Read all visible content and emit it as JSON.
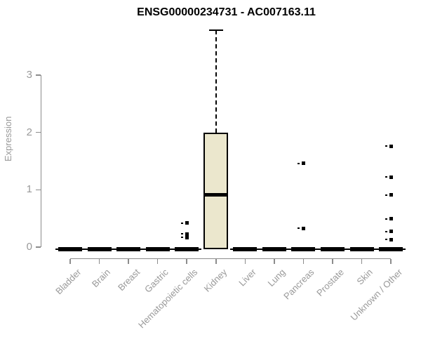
{
  "chart_data": {
    "type": "boxplot",
    "title": "ENSG00000234731 - AC007163.11",
    "ylabel": "Expression",
    "xlabel": "",
    "yticks": [
      0,
      1,
      2,
      3
    ],
    "ylim": [
      0,
      3.9
    ],
    "grid": false,
    "legend": null,
    "categories": [
      "Bladder",
      "Brain",
      "Breast",
      "Gastric",
      "Hematopoietic cells",
      "Kidney",
      "Liver",
      "Lung",
      "Pancreas",
      "Prostate",
      "Skin",
      "Unknown / Other"
    ],
    "boxes": [
      {
        "category": "Bladder",
        "min": 0,
        "q1": 0,
        "median": 0,
        "q3": 0,
        "max": 0,
        "outliers": []
      },
      {
        "category": "Brain",
        "min": 0,
        "q1": 0,
        "median": 0,
        "q3": 0,
        "max": 0,
        "outliers": []
      },
      {
        "category": "Breast",
        "min": 0,
        "q1": 0,
        "median": 0,
        "q3": 0,
        "max": 0,
        "outliers": []
      },
      {
        "category": "Gastric",
        "min": 0,
        "q1": 0,
        "median": 0,
        "q3": 0,
        "max": 0,
        "outliers": []
      },
      {
        "category": "Hematopoietic cells",
        "min": 0,
        "q1": 0,
        "median": 0,
        "q3": 0,
        "max": 0,
        "outliers": [
          0.17,
          0.23,
          0.42
        ]
      },
      {
        "category": "Kidney",
        "min": 0,
        "q1": 0,
        "median": 0.91,
        "q3": 2.0,
        "max": 3.78,
        "outliers": []
      },
      {
        "category": "Liver",
        "min": 0,
        "q1": 0,
        "median": 0,
        "q3": 0,
        "max": 0,
        "outliers": []
      },
      {
        "category": "Lung",
        "min": 0,
        "q1": 0,
        "median": 0,
        "q3": 0,
        "max": 0,
        "outliers": []
      },
      {
        "category": "Pancreas",
        "min": 0,
        "q1": 0,
        "median": 0,
        "q3": 0,
        "max": 0,
        "outliers": [
          0.33,
          1.46
        ]
      },
      {
        "category": "Prostate",
        "min": 0,
        "q1": 0,
        "median": 0,
        "q3": 0,
        "max": 0,
        "outliers": []
      },
      {
        "category": "Skin",
        "min": 0,
        "q1": 0,
        "median": 0,
        "q3": 0,
        "max": 0,
        "outliers": []
      },
      {
        "category": "Unknown / Other",
        "min": 0,
        "q1": 0,
        "median": 0,
        "q3": 0,
        "max": 0,
        "outliers": [
          0.13,
          0.27,
          0.49,
          0.91,
          1.22,
          1.76
        ]
      }
    ],
    "colors": {
      "box_fill": "#ebe7cd",
      "box_border": "#000000",
      "median": "#000000",
      "whisker": "#000000",
      "outlier": "#000000",
      "axis": "#8c8c8c",
      "tick_label": "#999999",
      "title": "#000000"
    }
  }
}
